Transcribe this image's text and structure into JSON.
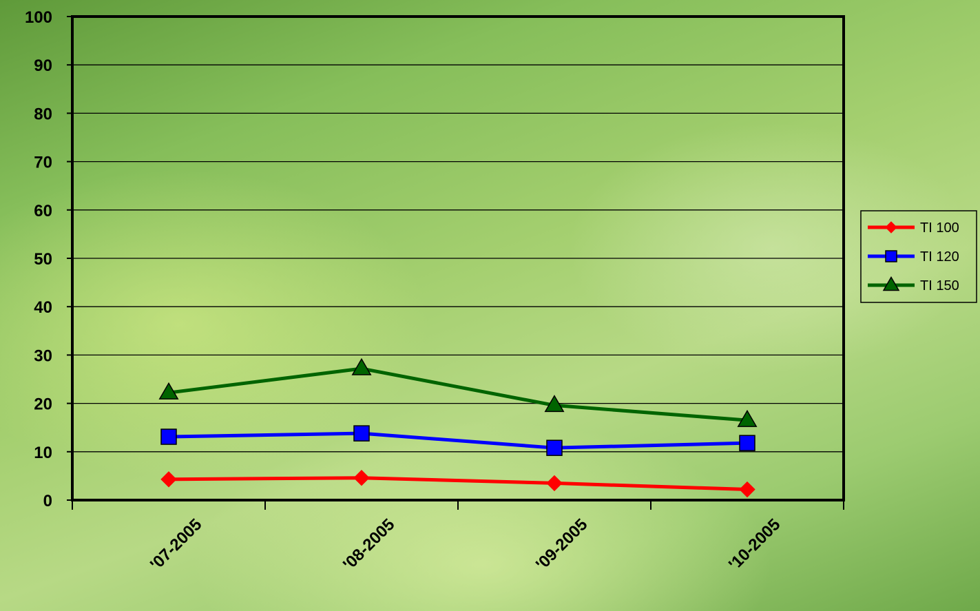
{
  "chart_data": {
    "type": "line",
    "categories": [
      "'07-2005",
      "'08-2005",
      "'09-2005",
      "'10-2005"
    ],
    "series": [
      {
        "name": "TI 100",
        "values": [
          4.3,
          4.6,
          3.5,
          2.2
        ],
        "color": "#ff0000",
        "marker": "diamond"
      },
      {
        "name": "TI 120",
        "values": [
          13.1,
          13.8,
          10.8,
          11.8
        ],
        "color": "#0000ff",
        "marker": "square"
      },
      {
        "name": "TI 150",
        "values": [
          22.2,
          27.2,
          19.6,
          16.5
        ],
        "color": "#006400",
        "marker": "triangle"
      }
    ],
    "title": "",
    "xlabel": "",
    "ylabel": "",
    "ylim": [
      0,
      100
    ],
    "yticks": [
      "0",
      "10",
      "20",
      "30",
      "40",
      "50",
      "60",
      "70",
      "80",
      "90",
      "100"
    ],
    "grid": true,
    "legend_position": "right"
  }
}
